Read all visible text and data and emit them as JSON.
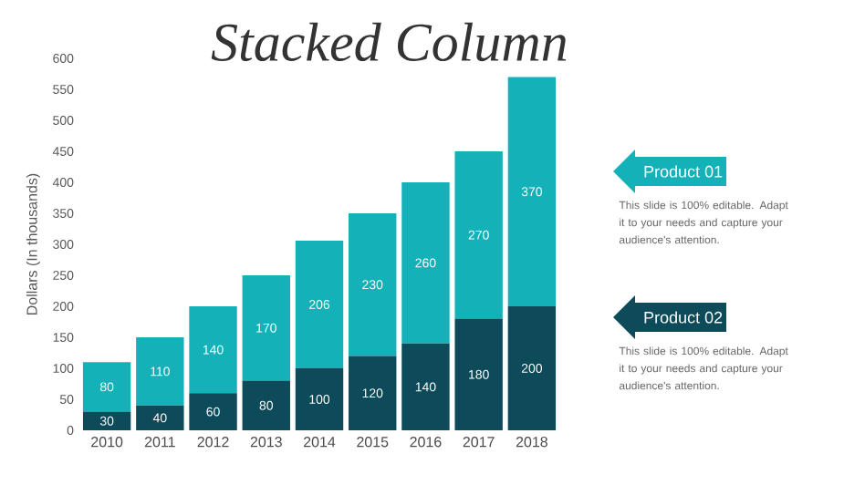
{
  "chart_data": {
    "type": "bar",
    "stacked": true,
    "title": "Stacked Column",
    "ylabel": "Dollars (In thousands)",
    "categories": [
      "2010",
      "2011",
      "2012",
      "2013",
      "2014",
      "2015",
      "2016",
      "2017",
      "2018"
    ],
    "series": [
      {
        "name": "Product 02",
        "color": "#0d4a5a",
        "values": [
          30,
          40,
          60,
          80,
          100,
          120,
          140,
          180,
          200
        ]
      },
      {
        "name": "Product 01",
        "color": "#14b1b8",
        "values": [
          80,
          110,
          140,
          170,
          206,
          230,
          260,
          270,
          370
        ]
      }
    ],
    "ylim": [
      0,
      600
    ],
    "yticks": [
      0,
      50,
      100,
      150,
      200,
      250,
      300,
      350,
      400,
      450,
      500,
      550,
      600
    ],
    "data_labels": true,
    "legend": "right",
    "annotations": [
      "This slide is 100% editable. Adapt it to your needs and capture your audience's attention.",
      "This slide is 100% editable. Adapt it to your needs and capture your audience's attention."
    ]
  }
}
